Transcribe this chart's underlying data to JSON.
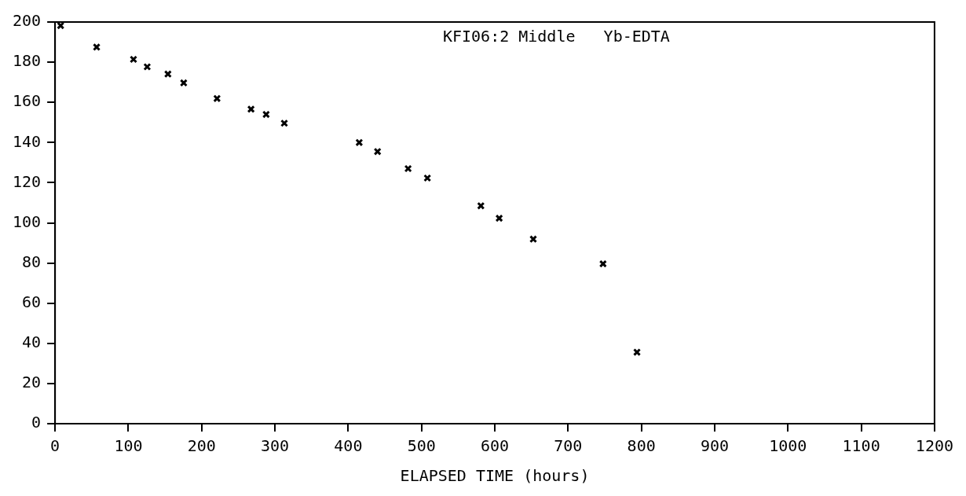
{
  "chart_data": {
    "type": "scatter",
    "xlabel": "ELAPSED TIME (hours)",
    "annotations": [
      "KFI06:2 Middle   Yb-EDTA"
    ],
    "x": [
      7.6,
      56.7,
      107,
      125.7,
      154,
      175.5,
      221,
      267.4,
      288,
      312.8,
      415,
      440,
      481.7,
      508,
      581,
      606,
      652.5,
      747.7,
      794
    ],
    "series": [
      {
        "color": "#000000",
        "values": [
          198.2,
          187.5,
          181.4,
          177.7,
          174.1,
          169.7,
          161.9,
          156.6,
          154,
          149.6,
          140,
          135.5,
          127,
          122.3,
          108.5,
          102.3,
          91.9,
          79.6,
          35.6
        ]
      }
    ],
    "xlim": [
      0,
      1200
    ],
    "xticks": [
      0,
      100,
      200,
      300,
      400,
      500,
      600,
      700,
      800,
      900,
      1000,
      1100,
      1200
    ],
    "ylim": [
      0,
      200
    ],
    "yticks": [
      0,
      20,
      40,
      60,
      80,
      100,
      120,
      140,
      160,
      180,
      200
    ],
    "grid": false,
    "legend": false,
    "marker": "cross"
  }
}
